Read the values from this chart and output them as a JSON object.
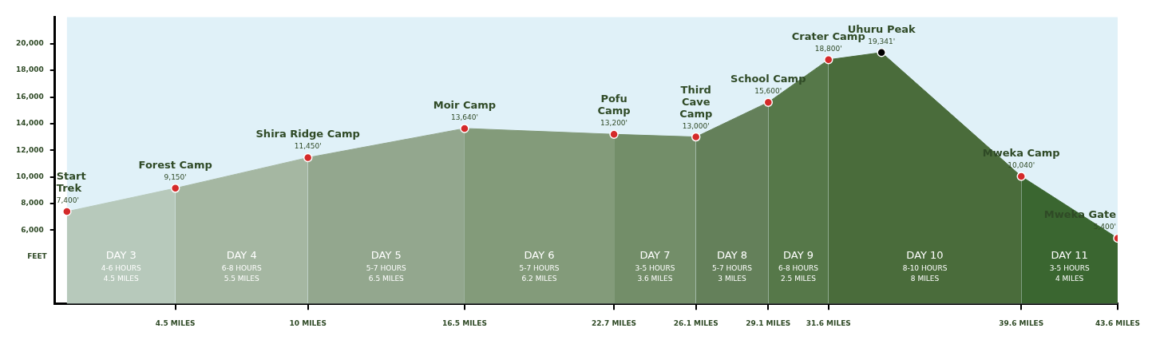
{
  "chart_data": {
    "type": "area",
    "ylabel": "FEET",
    "series": [
      {
        "name": "DAY 3\n4-6 HOURS\n4.5 MILES",
        "color": "#b7c9bb",
        "x": [
          0,
          4.5
        ],
        "values": [
          7400,
          9150
        ],
        "marker": "none"
      },
      {
        "name": "DAY 4\n6-8 HOURS\n5.5 MILES",
        "color": "#a5b7a2",
        "x": [
          4.5,
          10
        ],
        "values": [
          9150,
          11450
        ],
        "marker": "none"
      },
      {
        "name": "DAY 5\n5-7 HOURS\n6.5 MILES",
        "color": "#93a78e",
        "x": [
          10,
          16.5
        ],
        "values": [
          11450,
          13640
        ],
        "marker": "none"
      },
      {
        "name": "DAY 6\n5-7 HOURS\n6.2 MILES",
        "color": "#839b7a",
        "x": [
          16.5,
          22.7
        ],
        "values": [
          13640,
          13200
        ],
        "marker": "none"
      },
      {
        "name": "DAY 7\n3-5 HOURS\n3.6 MILES",
        "color": "#738e69",
        "x": [
          22.7,
          26.1
        ],
        "values": [
          13200,
          13000
        ],
        "marker": "none"
      },
      {
        "name": "DAY 8\n5-7 HOURS\n3 MILES",
        "color": "#64805a",
        "x": [
          26.1,
          29.1
        ],
        "values": [
          13000,
          15600
        ],
        "marker": "none"
      },
      {
        "name": "DAY 9\n6-8 HOURS\n2.5 MILES",
        "color": "#567849",
        "x": [
          29.1,
          31.6
        ],
        "values": [
          15600,
          18800
        ],
        "marker": "none"
      },
      {
        "name": "DAY 10\n8-10 HOURS\n8 MILES",
        "color": "#4a6c3b",
        "x": [
          31.6,
          33.8,
          39.6
        ],
        "values": [
          18800,
          19341,
          10040
        ],
        "marker": "none"
      },
      {
        "name": "DAY 11\n3-5 HOURS\n4 MILES",
        "color": "#3a6630",
        "x": [
          39.6,
          43.6
        ],
        "values": [
          10040,
          5400
        ],
        "marker": "none"
      },
      {
        "type": "scatter",
        "marker": "circle",
        "x": [
          0,
          4.5,
          10,
          16.5,
          22.7,
          26.1,
          29.1,
          31.6,
          33.8,
          39.6,
          43.6
        ],
        "values": [
          7400,
          9150,
          11450,
          13640,
          13200,
          13000,
          15600,
          18800,
          19341,
          10040,
          5400
        ],
        "colors": [
          "#d42a2a",
          "#d42a2a",
          "#d42a2a",
          "#d42a2a",
          "#d42a2a",
          "#d42a2a",
          "#d42a2a",
          "#d42a2a",
          "#000000",
          "#d42a2a",
          "#d42a2a"
        ],
        "value_labels": [
          "7,400'",
          "9,150'",
          "11,450'",
          "13,640'",
          "13,200'",
          "13,000'",
          "15,600'",
          "18,800'",
          "19,341'",
          "10,040'",
          "5,400'"
        ]
      }
    ],
    "annotations": [
      {
        "text": "Start\nTrek",
        "x": 0,
        "y": 7400
      },
      {
        "text": "Forest Camp",
        "x": 4.5,
        "y": 9150
      },
      {
        "text": "Shira Ridge Camp",
        "x": 10,
        "y": 11450
      },
      {
        "text": "Moir Camp",
        "x": 16.5,
        "y": 13640
      },
      {
        "text": "Pofu\nCamp",
        "x": 22.7,
        "y": 13200
      },
      {
        "text": "Third\nCave\nCamp",
        "x": 26.1,
        "y": 13000
      },
      {
        "text": "School Camp",
        "x": 29.1,
        "y": 15600
      },
      {
        "text": "Crater Camp",
        "x": 31.6,
        "y": 18800
      },
      {
        "text": "Uhuru Peak",
        "x": 33.8,
        "y": 19341
      },
      {
        "text": "Mweka Camp",
        "x": 39.6,
        "y": 10040
      },
      {
        "text": "Mweka Gate",
        "x": 43.6,
        "y": 5400
      }
    ],
    "xlim": [
      -0.5,
      43.6
    ],
    "xticks": [
      {
        "value": 4.5,
        "label": "4.5 MILES"
      },
      {
        "value": 10,
        "label": "10 MILES"
      },
      {
        "value": 16.5,
        "label": "16.5 MILES"
      },
      {
        "value": 22.7,
        "label": "22.7 MILES"
      },
      {
        "value": 26.1,
        "label": "26.1 MILES"
      },
      {
        "value": 29.1,
        "label": "29.1 MILES"
      },
      {
        "value": 31.6,
        "label": "31.6 MILES"
      },
      {
        "value": 39.6,
        "label": "39.6 MILES"
      },
      {
        "value": 43.6,
        "label": "43.6 MILES"
      }
    ],
    "ylim": [
      500,
      22000
    ],
    "yticks": [
      {
        "value": 6000,
        "label": "6,000"
      },
      {
        "value": 8000,
        "label": "8,000"
      },
      {
        "value": 10000,
        "label": "10,000"
      },
      {
        "value": 12000,
        "label": "12,000"
      },
      {
        "value": 14000,
        "label": "14,000"
      },
      {
        "value": 16000,
        "label": "16,000"
      },
      {
        "value": 18000,
        "label": "18,000"
      },
      {
        "value": 20000,
        "label": "20,000"
      }
    ],
    "grid": false,
    "legend": false
  }
}
